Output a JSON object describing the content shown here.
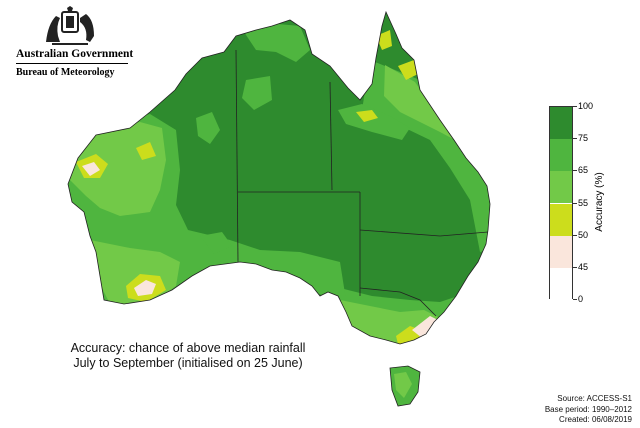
{
  "branding": {
    "government": "Australian Government",
    "agency": "Bureau of Meteorology",
    "icon": "coat-of-arms-icon"
  },
  "caption": {
    "line1": "Accuracy: chance of above median rainfall",
    "line2": "July to September (initialised on 25 June)"
  },
  "footer": {
    "source": "Source: ACCESS-S1",
    "base_period": "Base period: 1990–2012",
    "created": "Created: 06/08/2019"
  },
  "legend": {
    "title": "Accuracy (%)",
    "ticks": [
      "100",
      "75",
      "65",
      "55",
      "50",
      "45",
      "0"
    ],
    "classes": [
      {
        "from": 75,
        "to": 100,
        "color": "#2e8b2e"
      },
      {
        "from": 65,
        "to": 75,
        "color": "#4fb53f"
      },
      {
        "from": 55,
        "to": 65,
        "color": "#72c948"
      },
      {
        "from": 50,
        "to": 55,
        "color": "#ccdd1c"
      },
      {
        "from": 45,
        "to": 50,
        "color": "#fae6dc"
      },
      {
        "from": 0,
        "to": 45,
        "color": "#ffffff"
      }
    ]
  },
  "colors": {
    "high": "#2e8b2e",
    "mid_high": "#4fb53f",
    "mid": "#72c948",
    "low_mid": "#ccdd1c",
    "low": "#fae6dc",
    "outline": "#222222"
  }
}
